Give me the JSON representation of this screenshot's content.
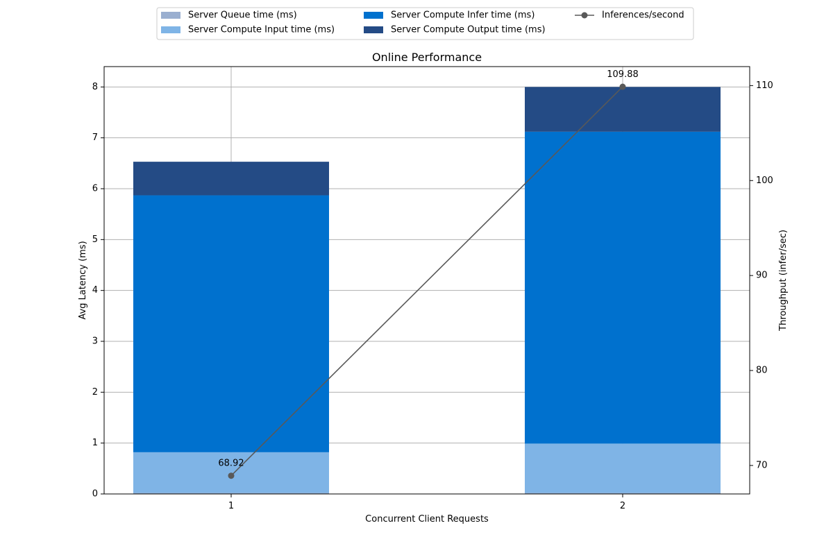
{
  "chart_data": {
    "type": "bar",
    "title": "Online Performance",
    "xlabel": "Concurrent Client Requests",
    "ylabel": "Avg Latency (ms)",
    "y2label": "Throughput (infer/sec)",
    "categories": [
      "1",
      "2"
    ],
    "ylim": [
      0,
      8.4
    ],
    "y2lim": [
      67,
      112
    ],
    "yticks": [
      0,
      1,
      2,
      3,
      4,
      5,
      6,
      7,
      8
    ],
    "y2ticks": [
      70,
      80,
      90,
      100,
      110
    ],
    "grid": true,
    "stacked": true,
    "legend_position": "top-center",
    "series": [
      {
        "name": "Server Queue time (ms)",
        "values": [
          0.02,
          0.02
        ],
        "color": "#9aafd0"
      },
      {
        "name": "Server Compute Input time (ms)",
        "values": [
          0.8,
          0.97
        ],
        "color": "#7fb4e6"
      },
      {
        "name": "Server Compute Infer time (ms)",
        "values": [
          5.05,
          6.13
        ],
        "color": "#0071ce"
      },
      {
        "name": "Server Compute Output time (ms)",
        "values": [
          0.66,
          0.88
        ],
        "color": "#244b85"
      }
    ],
    "line_series": {
      "name": "Inferences/second",
      "values": [
        68.92,
        109.88
      ],
      "labels": [
        "68.92",
        "109.88"
      ],
      "color": "#595959",
      "axis": "right"
    }
  }
}
